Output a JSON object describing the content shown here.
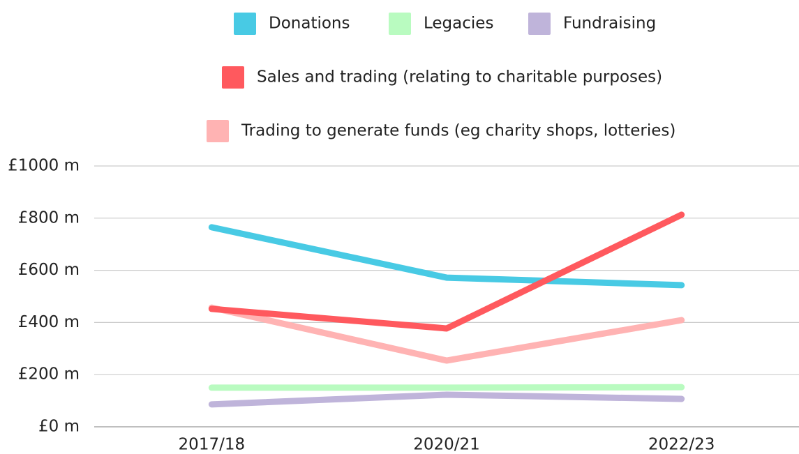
{
  "chart_data": {
    "type": "line",
    "categories": [
      "2017/18",
      "2020/21",
      "2022/23"
    ],
    "series": [
      {
        "name": "Donations",
        "color": "#48cae4",
        "values": [
          765,
          572,
          543
        ]
      },
      {
        "name": "Legacies",
        "color": "#b9fbc0",
        "values": [
          150,
          150,
          152
        ]
      },
      {
        "name": "Fundraising",
        "color": "#bfb4da",
        "values": [
          86,
          123,
          107
        ]
      },
      {
        "name": "Sales and trading (relating to charitable purposes)",
        "color": "#ff595e",
        "values": [
          452,
          377,
          813
        ]
      },
      {
        "name": "Trading to generate funds (eg charity shops, lotteries)",
        "color": "#ffb3b3",
        "values": [
          457,
          254,
          409
        ]
      }
    ],
    "ylim": [
      0,
      1000
    ],
    "yticks": [
      {
        "value": 0,
        "label": "£0 m"
      },
      {
        "value": 200,
        "label": "£200 m"
      },
      {
        "value": 400,
        "label": "£400 m"
      },
      {
        "value": 600,
        "label": "£600 m"
      },
      {
        "value": 800,
        "label": "£800 m"
      },
      {
        "value": 1000,
        "label": "£1000 m"
      }
    ],
    "grid": true
  }
}
